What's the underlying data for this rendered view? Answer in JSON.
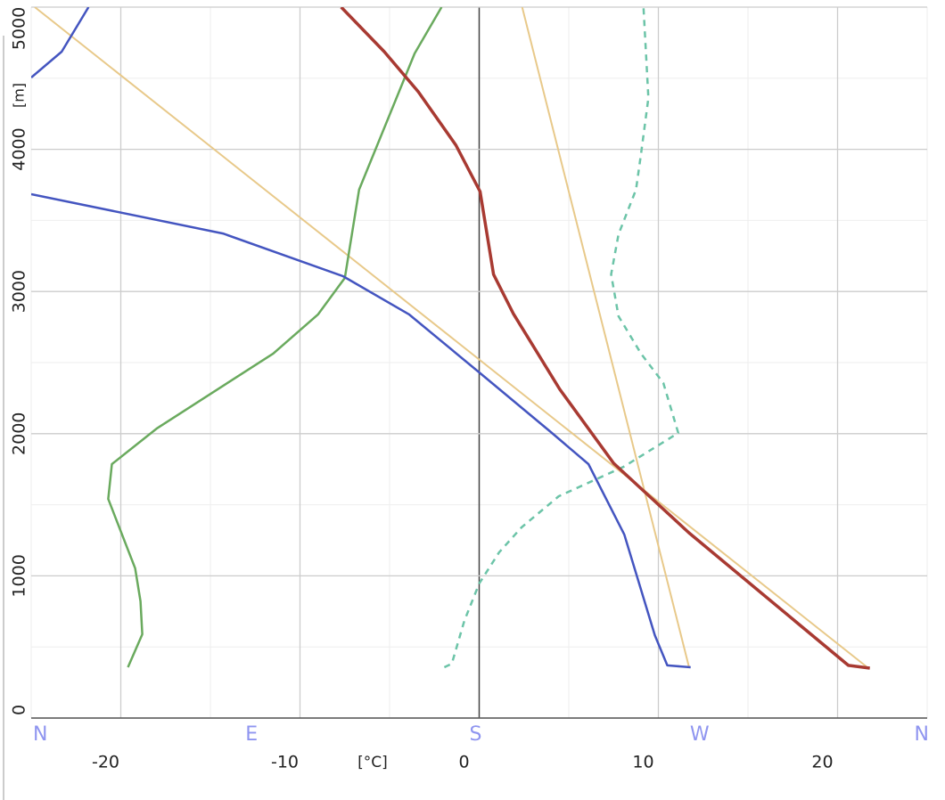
{
  "chart_data": {
    "type": "line",
    "xlabel": "[°C]",
    "ylabel": "[m]",
    "xlim": [
      -25,
      25
    ],
    "xticks": [
      -20,
      -10,
      0,
      10,
      20
    ],
    "x2lim": [
      0,
      360
    ],
    "x2ticks": [
      {
        "value": 0,
        "label": "N"
      },
      {
        "value": 90,
        "label": "E"
      },
      {
        "value": 180,
        "label": "S"
      },
      {
        "value": 270,
        "label": "W"
      },
      {
        "value": 360,
        "label": "N"
      }
    ],
    "ylim": [
      0,
      5000
    ],
    "yticks": [
      0,
      1000,
      2000,
      3000,
      4000,
      5000
    ],
    "grid": true,
    "series": [
      {
        "color": "#e8c98a",
        "x": [
          -24.8,
          21.6
        ],
        "values": [
          5000,
          363
        ]
      },
      {
        "color": "#e8c98a",
        "x": [
          2.4,
          11.7
        ],
        "values": [
          5000,
          363
        ]
      },
      {
        "color": "#6aaa5e",
        "x": [
          -19.6,
          -18.8,
          -18.9,
          -19.2,
          -20.7,
          -20.5,
          -18.0,
          -11.5,
          -9.0,
          -7.5,
          -6.7,
          -3.6,
          -2.1
        ],
        "values": [
          357,
          589,
          821,
          1053,
          1541,
          1786,
          2036,
          2563,
          2838,
          3095,
          3716,
          4674,
          5000
        ]
      },
      {
        "color": "#6cc4a8",
        "style": "dashed",
        "axis": "x2",
        "x": [
          166,
          169,
          174,
          180,
          188,
          197,
          212,
          238,
          260,
          254,
          245,
          236,
          233,
          236,
          243,
          245,
          248,
          246
        ],
        "values": [
          357,
          382,
          683,
          946,
          1165,
          1341,
          1560,
          1767,
          2005,
          2356,
          2563,
          2826,
          3120,
          3402,
          3716,
          3966,
          4361,
          5000
        ]
      },
      {
        "color": "#4455c0",
        "x": [
          11.8,
          10.5,
          9.8,
          8.1,
          6.1,
          4.0,
          0,
          -3.9,
          -7.6,
          -14.3,
          -25,
          null,
          -25,
          -23.3,
          -21.8
        ],
        "values": [
          357,
          370,
          583,
          1290,
          1786,
          2011,
          2431,
          2838,
          3108,
          3408,
          3684,
          null,
          4505,
          4687,
          5000
        ]
      },
      {
        "color": "#a83a32",
        "x": [
          21.8,
          20.6,
          11.7,
          7.5,
          4.5,
          1.9,
          0.8,
          0.05,
          -1.3,
          -3.4,
          -5.3,
          -7.7
        ],
        "values": [
          351,
          370,
          1303,
          1792,
          2312,
          2845,
          3120,
          3703,
          4029,
          4405,
          4687,
          5000
        ]
      }
    ]
  }
}
